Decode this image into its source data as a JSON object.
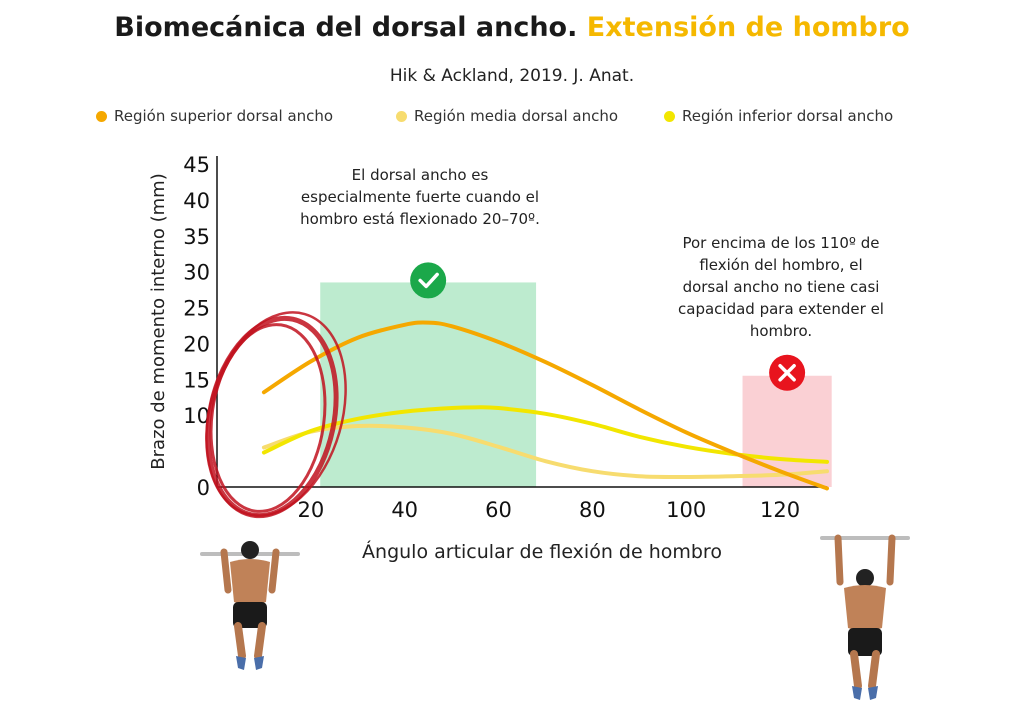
{
  "header": {
    "title_main": "Biomecánica del dorsal ancho.",
    "title_highlight": "Extensión de hombro",
    "subtitle": "Hik & Ackland, 2019. J. Anat."
  },
  "colors": {
    "superior": "#F5A800",
    "media": "#F7DC6F",
    "inferior": "#F2E600",
    "green_zone": "#BDEBCF",
    "red_zone": "#FAD0D4",
    "check": "#1BA84A",
    "cross": "#E8141E",
    "highlight": "#F5B800",
    "marker": "#C1121F"
  },
  "annotations": {
    "good": "El dorsal ancho es especialmente fuerte cuando el hombro está flexionado 20–70º.",
    "bad": "Por encima de los 110º de flexión del hombro, el dorsal ancho no tiene casi capacidad para extender el hombro."
  },
  "icons": {
    "good": "check-circle-icon",
    "bad": "cross-circle-icon"
  },
  "chart_data": {
    "type": "line",
    "title": "",
    "xlabel": "Ángulo articular de flexión de hombro",
    "ylabel": "Brazo de momento interno (mm)",
    "xlim": [
      0,
      130
    ],
    "ylim": [
      0,
      45
    ],
    "x_ticks": [
      20,
      40,
      60,
      80,
      100,
      120
    ],
    "y_ticks": [
      0,
      10,
      15,
      20,
      25,
      30,
      35,
      40,
      45
    ],
    "legend_position": "top",
    "series": [
      {
        "name": "Región superior dorsal ancho",
        "color_key": "superior",
        "x": [
          10,
          20,
          30,
          40,
          45,
          50,
          60,
          70,
          80,
          90,
          100,
          110,
          120,
          130
        ],
        "y": [
          13.2,
          17.5,
          20.8,
          22.6,
          22.9,
          22.4,
          20.2,
          17.4,
          14.2,
          10.8,
          7.6,
          4.8,
          2.2,
          -0.2
        ]
      },
      {
        "name": "Región media dorsal ancho",
        "color_key": "media",
        "x": [
          10,
          20,
          30,
          40,
          50,
          60,
          70,
          80,
          90,
          100,
          110,
          120,
          130
        ],
        "y": [
          5.5,
          7.7,
          8.5,
          8.3,
          7.4,
          5.6,
          3.6,
          2.2,
          1.5,
          1.4,
          1.5,
          1.7,
          2.2
        ]
      },
      {
        "name": "Región inferior dorsal ancho",
        "color_key": "inferior",
        "x": [
          10,
          20,
          30,
          40,
          50,
          55,
          60,
          70,
          80,
          90,
          100,
          110,
          120,
          130
        ],
        "y": [
          4.8,
          7.8,
          9.5,
          10.5,
          11.0,
          11.1,
          11.0,
          10.2,
          8.8,
          7.0,
          5.6,
          4.6,
          3.9,
          3.5
        ]
      }
    ],
    "shaded_regions": [
      {
        "x": [
          22,
          68
        ],
        "y": [
          0,
          28.5
        ],
        "color_key": "green_zone"
      },
      {
        "x": [
          112,
          131
        ],
        "y": [
          0,
          15.5
        ],
        "color_key": "red_zone"
      }
    ]
  }
}
